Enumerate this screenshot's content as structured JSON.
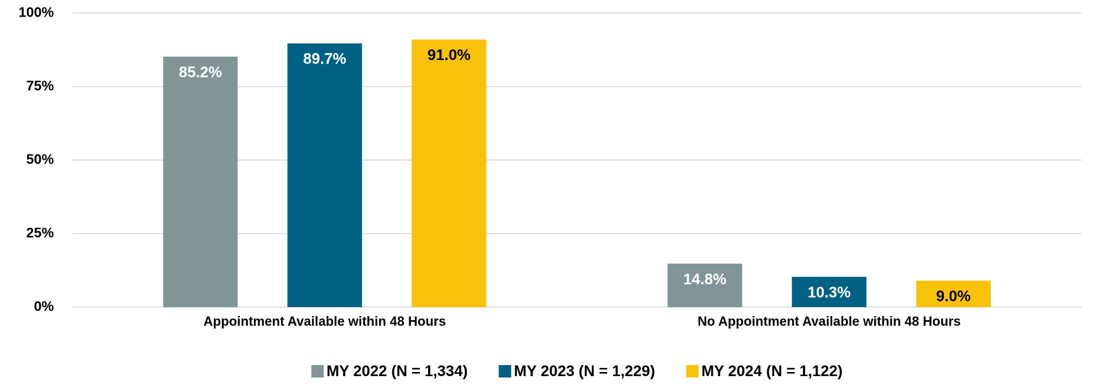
{
  "chart_data": {
    "type": "bar",
    "categories": [
      "Appointment Available within 48 Hours",
      "No Appointment Available within 48 Hours"
    ],
    "series": [
      {
        "name": "MY 2022 (N = 1,334)",
        "color": "#829596",
        "label_color": "#ffffff",
        "values": [
          85.2,
          14.8
        ],
        "value_labels": [
          "85.2%",
          "14.8%"
        ]
      },
      {
        "name": "MY 2023 (N = 1,229)",
        "color": "#006184",
        "label_color": "#ffffff",
        "values": [
          89.7,
          10.3
        ],
        "value_labels": [
          "89.7%",
          "10.3%"
        ]
      },
      {
        "name": "MY 2024 (N = 1,122)",
        "color": "#f8c20a",
        "label_color": "#000000",
        "values": [
          91.0,
          9.0
        ],
        "value_labels": [
          "91.0%",
          "9.0%"
        ]
      }
    ],
    "ylim": [
      0,
      100
    ],
    "yticks": [
      {
        "value": 0,
        "label": "0%"
      },
      {
        "value": 25,
        "label": "25%"
      },
      {
        "value": 50,
        "label": "50%"
      },
      {
        "value": 75,
        "label": "75%"
      },
      {
        "value": 100,
        "label": "100%"
      }
    ],
    "grid": true,
    "legend": "bottom"
  }
}
